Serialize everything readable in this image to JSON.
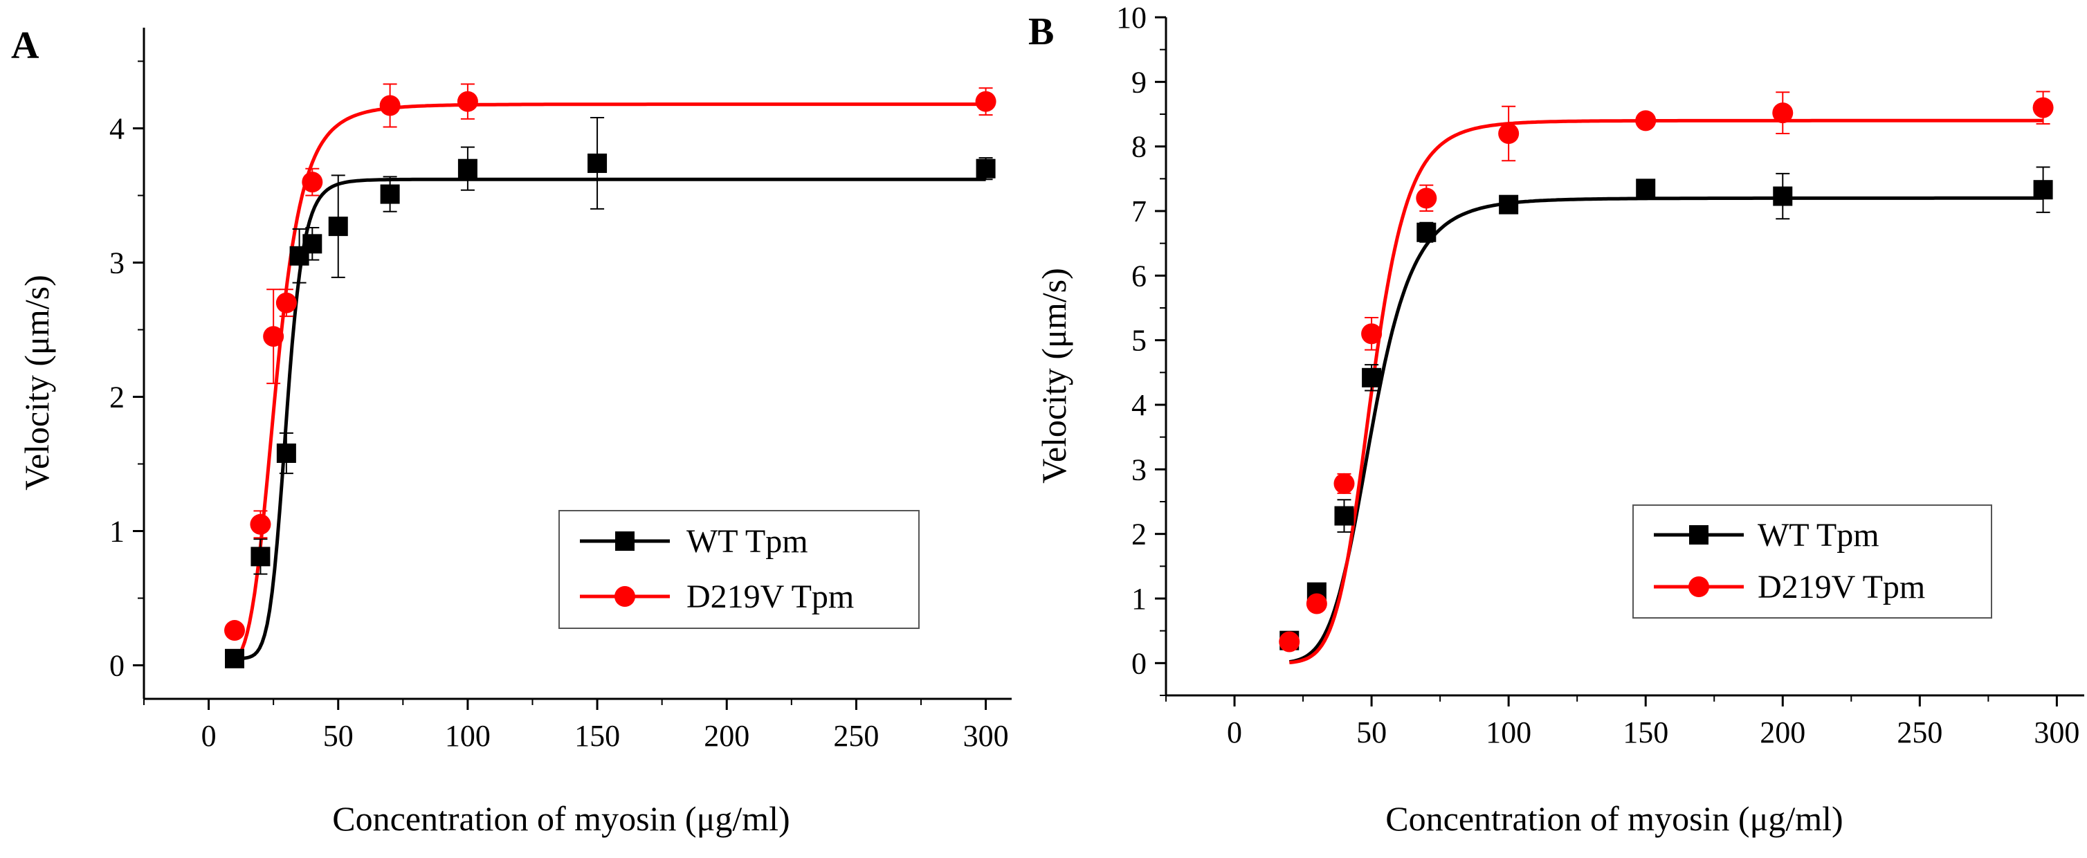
{
  "chart_data": [
    {
      "panel": "A",
      "type": "scatter",
      "xlabel": "Concentration of myosin (μg/ml)",
      "ylabel": "Velocity (μm/s)",
      "xlim": [
        -25,
        310
      ],
      "ylim": [
        -0.25,
        4.75
      ],
      "xticks": [
        0,
        50,
        100,
        150,
        200,
        250,
        300
      ],
      "yticks": [
        0,
        1,
        2,
        3,
        4
      ],
      "legend_position": "lower-right",
      "series": [
        {
          "name": "WT Tpm",
          "color": "#000000",
          "marker": "square",
          "x": [
            10,
            20,
            30,
            35,
            40,
            50,
            70,
            100,
            150,
            300
          ],
          "y": [
            0.05,
            0.81,
            1.58,
            3.05,
            3.14,
            3.27,
            3.51,
            3.7,
            3.74,
            3.7
          ],
          "err": [
            0.05,
            0.13,
            0.15,
            0.2,
            0.12,
            0.38,
            0.13,
            0.16,
            0.34,
            0.08
          ],
          "fit": {
            "vmax": 3.62,
            "x0": 30,
            "n": 9,
            "base": 0.05
          }
        },
        {
          "name": "D219V Tpm",
          "color": "#ff0000",
          "marker": "circle",
          "x": [
            10,
            20,
            25,
            30,
            40,
            70,
            100,
            300
          ],
          "y": [
            0.26,
            1.05,
            2.45,
            2.7,
            3.6,
            4.17,
            4.2,
            4.2
          ],
          "err": [
            0.03,
            0.1,
            0.35,
            0.1,
            0.1,
            0.16,
            0.13,
            0.1
          ],
          "fit": {
            "vmax": 4.18,
            "x0": 26,
            "n": 5,
            "base": 0.0
          }
        }
      ]
    },
    {
      "panel": "B",
      "type": "scatter",
      "xlabel": "Concentration of myosin (μg/ml)",
      "ylabel": "Velocity (μm/s)",
      "xlim": [
        -25,
        310
      ],
      "ylim": [
        -0.5,
        10
      ],
      "xticks": [
        0,
        50,
        100,
        150,
        200,
        250,
        300
      ],
      "yticks": [
        0,
        1,
        2,
        3,
        4,
        5,
        6,
        7,
        8,
        9,
        10
      ],
      "legend_position": "lower-right",
      "series": [
        {
          "name": "WT Tpm",
          "color": "#000000",
          "marker": "square",
          "x": [
            20,
            30,
            40,
            50,
            70,
            100,
            150,
            200,
            295
          ],
          "y": [
            0.35,
            1.1,
            2.28,
            4.42,
            6.67,
            7.1,
            7.35,
            7.23,
            7.33
          ],
          "err": [
            0.05,
            0.1,
            0.25,
            0.2,
            0.15,
            0.12,
            0.1,
            0.35,
            0.35
          ],
          "fit": {
            "vmax": 7.2,
            "x0": 50,
            "n": 6.5,
            "base": 0.0
          }
        },
        {
          "name": "D219V Tpm",
          "color": "#ff0000",
          "marker": "circle",
          "x": [
            20,
            30,
            40,
            50,
            70,
            100,
            150,
            200,
            295
          ],
          "y": [
            0.33,
            0.92,
            2.78,
            5.1,
            7.2,
            8.2,
            8.4,
            8.52,
            8.6
          ],
          "err": [
            0.05,
            0.1,
            0.15,
            0.25,
            0.2,
            0.42,
            0.1,
            0.32,
            0.25
          ],
          "fit": {
            "vmax": 8.4,
            "x0": 50,
            "n": 7.5,
            "base": 0.0
          }
        }
      ]
    }
  ]
}
